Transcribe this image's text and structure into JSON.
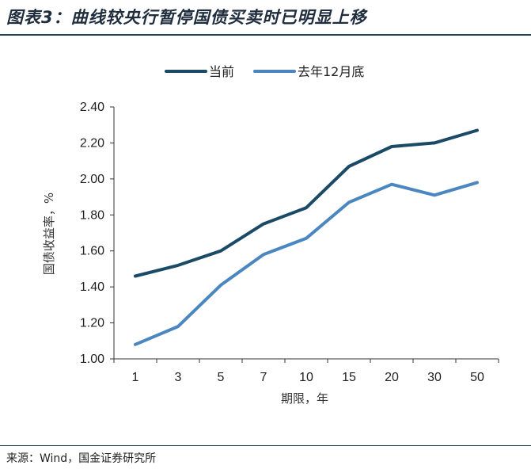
{
  "header": {
    "title": "图表3：曲线较央行暂停国债买卖时已明显上移"
  },
  "footer": {
    "source": "来源：Wind，国金证券研究所"
  },
  "chart_data": {
    "type": "line",
    "title": "",
    "xlabel": "期限，年",
    "ylabel": "国债收益率，%",
    "categories": [
      "1",
      "3",
      "5",
      "7",
      "10",
      "15",
      "20",
      "30",
      "50"
    ],
    "ylim": [
      1.0,
      2.4
    ],
    "yticks": [
      "1.00",
      "1.20",
      "1.40",
      "1.60",
      "1.80",
      "2.00",
      "2.20",
      "2.40"
    ],
    "grid": false,
    "legend_position": "top",
    "series": [
      {
        "name": "当前",
        "color": "#1b4a66",
        "values": [
          1.46,
          1.52,
          1.6,
          1.75,
          1.84,
          2.07,
          2.18,
          2.2,
          2.27
        ]
      },
      {
        "name": "去年12月底",
        "color": "#4a86c0",
        "values": [
          1.08,
          1.18,
          1.41,
          1.58,
          1.67,
          1.87,
          1.97,
          1.91,
          1.98
        ]
      }
    ]
  }
}
